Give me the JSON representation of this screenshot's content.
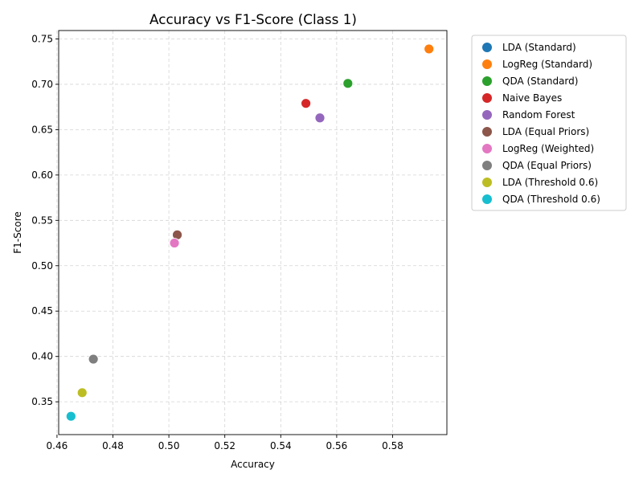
{
  "chart_data": {
    "type": "scatter",
    "title": "Accuracy vs F1-Score (Class 1)",
    "xlabel": "Accuracy",
    "ylabel": "F1-Score",
    "xlim": [
      0.4606,
      0.5994
    ],
    "ylim": [
      0.3138,
      0.7593
    ],
    "xticks": [
      0.46,
      0.48,
      0.5,
      0.52,
      0.54,
      0.56,
      0.58
    ],
    "xtick_labels": [
      "0.46",
      "0.48",
      "0.50",
      "0.52",
      "0.54",
      "0.56",
      "0.58"
    ],
    "yticks": [
      0.35,
      0.4,
      0.45,
      0.5,
      0.55,
      0.6,
      0.65,
      0.7,
      0.75
    ],
    "ytick_labels": [
      "0.35",
      "0.40",
      "0.45",
      "0.50",
      "0.55",
      "0.60",
      "0.65",
      "0.70",
      "0.75"
    ],
    "grid": true,
    "legend_position": "outside-right-top",
    "series": [
      {
        "name": "LDA (Standard)",
        "color": "#1f77b4",
        "x": 0.593,
        "y": 0.739
      },
      {
        "name": "LogReg (Standard)",
        "color": "#ff7f0e",
        "x": 0.593,
        "y": 0.739
      },
      {
        "name": "QDA (Standard)",
        "color": "#2ca02c",
        "x": 0.564,
        "y": 0.701
      },
      {
        "name": "Naive Bayes",
        "color": "#d62728",
        "x": 0.549,
        "y": 0.679
      },
      {
        "name": "Random Forest",
        "color": "#9467bd",
        "x": 0.554,
        "y": 0.663
      },
      {
        "name": "LDA (Equal Priors)",
        "color": "#8c564b",
        "x": 0.503,
        "y": 0.534
      },
      {
        "name": "LogReg (Weighted)",
        "color": "#e377c2",
        "x": 0.502,
        "y": 0.525
      },
      {
        "name": "QDA (Equal Priors)",
        "color": "#7f7f7f",
        "x": 0.473,
        "y": 0.397
      },
      {
        "name": "LDA (Threshold 0.6)",
        "color": "#bcbd22",
        "x": 0.469,
        "y": 0.36
      },
      {
        "name": "QDA (Threshold 0.6)",
        "color": "#17becf",
        "x": 0.465,
        "y": 0.334
      }
    ]
  }
}
